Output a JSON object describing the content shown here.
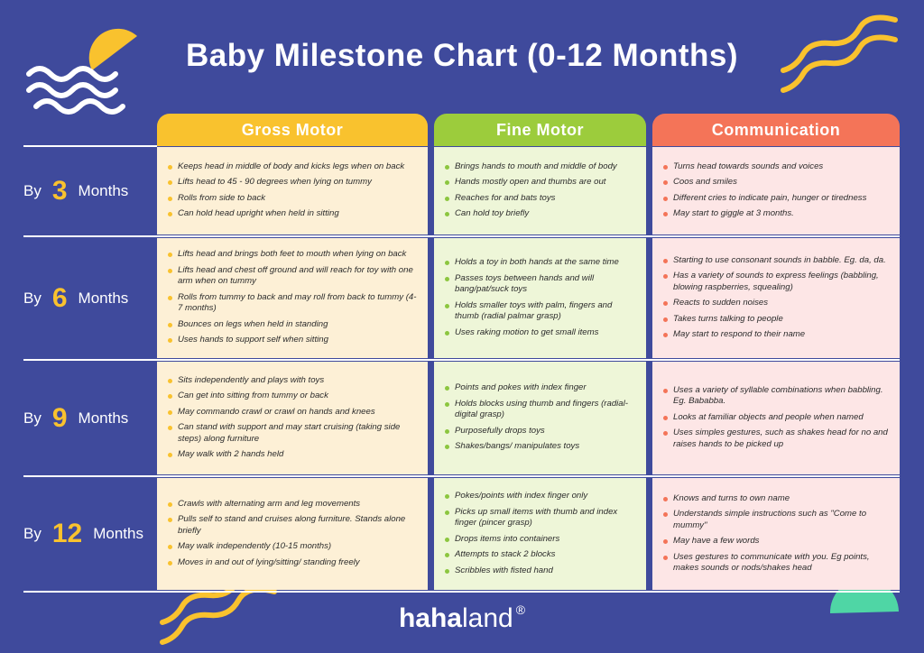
{
  "title": "Baby Milestone Chart (0-12 Months)",
  "columns": [
    "Gross Motor",
    "Fine Motor",
    "Communication"
  ],
  "rows": [
    {
      "prefix": "By",
      "age": "3",
      "suffix": "Months",
      "cells": [
        [
          "Keeps head in middle of body and kicks legs when on back",
          "Lifts head to 45 - 90 degrees when lying on tummy",
          "Rolls from side to back",
          "Can hold head upright when held in sitting"
        ],
        [
          "Brings hands to mouth and middle of body",
          "Hands mostly open and thumbs are out",
          "Reaches for and bats toys",
          "Can hold toy briefly"
        ],
        [
          "Turns head towards sounds and voices",
          "Coos and smiles",
          "Different cries to indicate pain, hunger or tiredness",
          "May start to giggle at 3 months."
        ]
      ]
    },
    {
      "prefix": "By",
      "age": "6",
      "suffix": "Months",
      "cells": [
        [
          "Lifts head and brings both feet to mouth when lying on back",
          "Lifts head and chest off ground and will reach for toy with one arm when on tummy",
          "Rolls from tummy to back and may roll from back to tummy (4-7 months)",
          "Bounces on legs when held in standing",
          "Uses hands to support self when sitting"
        ],
        [
          "Holds a toy in both hands at the same time",
          "Passes toys between hands and will bang/pat/suck toys",
          "Holds smaller toys with palm, fingers and thumb (radial palmar grasp)",
          "Uses raking motion to get small items"
        ],
        [
          "Starting to use consonant sounds in babble. Eg. da, da.",
          "Has a variety of sounds to express feelings (babbling, blowing raspberries, squealing)",
          "Reacts to sudden noises",
          "Takes turns talking to people",
          "May start to respond to their name"
        ]
      ]
    },
    {
      "prefix": "By",
      "age": "9",
      "suffix": "Months",
      "cells": [
        [
          "Sits independently and plays with toys",
          "Can get into sitting from tummy or back",
          "May commando crawl or crawl on hands and knees",
          "Can stand with support and may start cruising (taking side steps) along furniture",
          "May walk with 2 hands held"
        ],
        [
          "Points and pokes with index finger",
          "Holds blocks using thumb and fingers (radial-digital grasp)",
          "Purposefully drops toys",
          "Shakes/bangs/ manipulates toys"
        ],
        [
          "Uses a variety of syllable combinations when babbling. Eg. Bababba.",
          "Looks at familiar objects and people when named",
          "Uses simples gestures, such as shakes head for no and raises hands to be picked up"
        ]
      ]
    },
    {
      "prefix": "By",
      "age": "12",
      "suffix": "Months",
      "cells": [
        [
          "Crawls with alternating arm and leg movements",
          "Pulls self to stand and cruises along furniture. Stands alone briefly",
          "May walk independently (10-15 months)",
          "Moves in and out of lying/sitting/ standing freely"
        ],
        [
          "Pokes/points with index finger only",
          "Picks up small items with thumb and index finger (pincer grasp)",
          "Drops items into containers",
          "Attempts to stack 2 blocks",
          "Scribbles with fisted hand"
        ],
        [
          "Knows and turns to own name",
          "Understands simple instructions such as \"Come to mummy\"",
          "May have a few words",
          "Uses gestures to communicate with you. Eg points, makes sounds or nods/shakes head"
        ]
      ]
    }
  ],
  "footer": {
    "brand_bold": "haha",
    "brand_light": "land",
    "mark": "®"
  }
}
